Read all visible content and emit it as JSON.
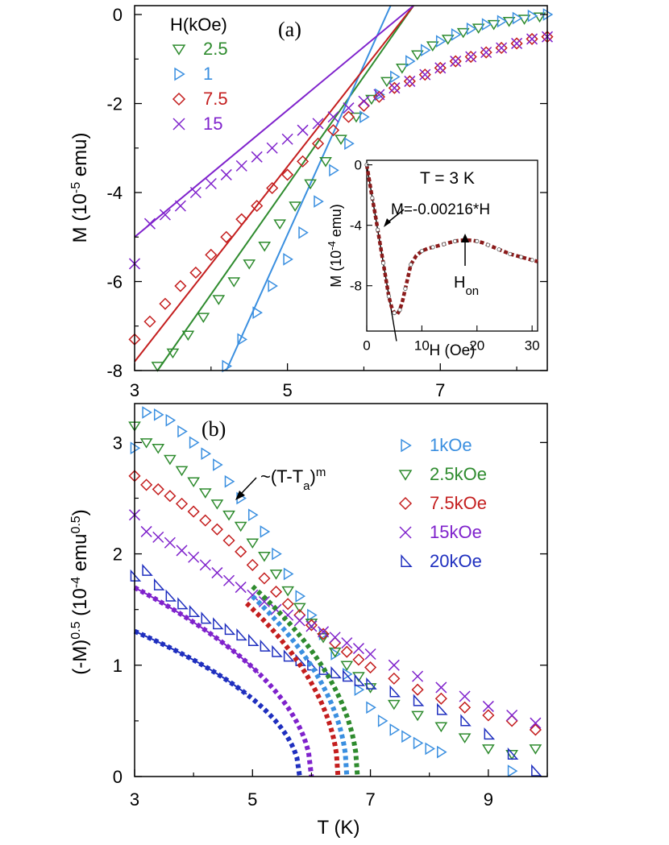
{
  "chart_data": [
    {
      "panel": "a",
      "type": "scatter",
      "panel_label": "(a)",
      "title": "",
      "xlabel": "",
      "ylabel": "M (10",
      "ylabel_exp": "-5",
      "ylabel_tail": " emu)",
      "xlim": [
        3,
        8.4
      ],
      "ylim": [
        -8,
        0.2
      ],
      "xticks": [
        "3",
        "5",
        "7"
      ],
      "yticks": [
        "0",
        "-2",
        "-4",
        "-6",
        "-8"
      ],
      "legend_title": "H(kOe)",
      "legend_position": "top-left",
      "series": [
        {
          "name": "2.5",
          "marker": "triangle-down",
          "color": "#2e8b2e",
          "x": [
            3.3,
            3.5,
            3.7,
            3.9,
            4.1,
            4.3,
            4.5,
            4.7,
            4.9,
            5.1,
            5.3,
            5.5,
            5.7,
            5.9,
            6.1,
            6.3,
            6.5,
            6.7,
            6.9,
            7.1,
            7.3,
            7.5,
            7.7,
            7.9,
            8.1,
            8.3
          ],
          "y": [
            -7.9,
            -7.6,
            -7.2,
            -6.8,
            -6.4,
            -6.0,
            -5.6,
            -5.2,
            -4.7,
            -4.3,
            -3.8,
            -3.3,
            -2.8,
            -2.3,
            -1.9,
            -1.5,
            -1.2,
            -0.9,
            -0.7,
            -0.55,
            -0.4,
            -0.3,
            -0.22,
            -0.15,
            -0.1,
            -0.05
          ]
        },
        {
          "name": "1",
          "marker": "triangle-right",
          "color": "#3a8fe0",
          "x": [
            4.2,
            4.4,
            4.6,
            4.8,
            5.0,
            5.2,
            5.4,
            5.6,
            5.8,
            6.0,
            6.2,
            6.4,
            6.6,
            6.8,
            7.0,
            7.2,
            7.4,
            7.6,
            7.8,
            8.0,
            8.2,
            8.4
          ],
          "y": [
            -7.9,
            -7.3,
            -6.7,
            -6.1,
            -5.5,
            -4.9,
            -4.2,
            -3.5,
            -2.9,
            -2.3,
            -1.8,
            -1.4,
            -1.05,
            -0.8,
            -0.6,
            -0.45,
            -0.32,
            -0.22,
            -0.15,
            -0.08,
            -0.03,
            0.0
          ]
        },
        {
          "name": "7.5",
          "marker": "diamond",
          "color": "#c41e1e",
          "x": [
            3.0,
            3.2,
            3.4,
            3.6,
            3.8,
            4.0,
            4.2,
            4.4,
            4.6,
            4.8,
            5.0,
            5.2,
            5.4,
            5.6,
            5.8,
            6.0,
            6.2,
            6.4,
            6.6,
            6.8,
            7.0,
            7.2,
            7.4,
            7.6,
            7.8,
            8.0,
            8.2,
            8.4
          ],
          "y": [
            -7.3,
            -6.9,
            -6.5,
            -6.1,
            -5.8,
            -5.4,
            -5.0,
            -4.6,
            -4.3,
            -3.9,
            -3.6,
            -3.3,
            -2.9,
            -2.6,
            -2.3,
            -2.05,
            -1.85,
            -1.65,
            -1.5,
            -1.35,
            -1.2,
            -1.05,
            -0.95,
            -0.85,
            -0.75,
            -0.65,
            -0.55,
            -0.5
          ]
        },
        {
          "name": "15",
          "marker": "x",
          "color": "#7f22cc",
          "x": [
            3.0,
            3.2,
            3.4,
            3.6,
            3.8,
            4.0,
            4.2,
            4.4,
            4.6,
            4.8,
            5.0,
            5.2,
            5.4,
            5.6,
            5.8,
            6.0,
            6.2,
            6.4,
            6.6,
            6.8,
            7.0,
            7.2,
            7.4,
            7.6,
            7.8,
            8.0,
            8.2,
            8.4
          ],
          "y": [
            -5.6,
            -4.7,
            -4.5,
            -4.3,
            -4.0,
            -3.8,
            -3.6,
            -3.4,
            -3.2,
            -3.0,
            -2.8,
            -2.6,
            -2.45,
            -2.3,
            -2.1,
            -1.95,
            -1.8,
            -1.65,
            -1.5,
            -1.35,
            -1.2,
            -1.05,
            -0.95,
            -0.85,
            -0.75,
            -0.65,
            -0.55,
            -0.5
          ]
        }
      ],
      "fit_lines": [
        {
          "series": "2.5",
          "x": [
            3.3,
            6.65
          ],
          "y": [
            -8.0,
            0.2
          ]
        },
        {
          "series": "1",
          "x": [
            4.2,
            6.35
          ],
          "y": [
            -8.0,
            0.2
          ]
        },
        {
          "series": "7.5",
          "x": [
            3.0,
            6.65
          ],
          "y": [
            -7.8,
            0.2
          ]
        },
        {
          "series": "15",
          "x": [
            3.0,
            6.65
          ],
          "y": [
            -5.0,
            0.2
          ]
        }
      ],
      "inset": {
        "xlabel": "H (Oe)",
        "ylabel": "M (10",
        "ylabel_exp": "-4",
        "ylabel_tail": " emu)",
        "title": "T = 3 K",
        "xlim": [
          0,
          31
        ],
        "ylim": [
          -11,
          0.3
        ],
        "xticks": [
          "0",
          "10",
          "20",
          "30"
        ],
        "yticks": [
          "0",
          "-4",
          "-8"
        ],
        "x": [
          0,
          0.5,
          1,
          1.5,
          2,
          2.5,
          3,
          3.5,
          4,
          4.5,
          5,
          5.5,
          6,
          6.5,
          7,
          7.5,
          8,
          9,
          10,
          11,
          12,
          13,
          14,
          15,
          16,
          17,
          18,
          19,
          20,
          21,
          22,
          23,
          24,
          25,
          26,
          27,
          28,
          29,
          30,
          31
        ],
        "y": [
          0,
          -1.1,
          -2.2,
          -3.2,
          -4.3,
          -5.4,
          -6.5,
          -7.6,
          -8.7,
          -9.4,
          -9.8,
          -9.9,
          -9.6,
          -9.0,
          -8.2,
          -7.4,
          -6.6,
          -6.0,
          -5.7,
          -5.55,
          -5.45,
          -5.35,
          -5.25,
          -5.15,
          -5.05,
          -5.0,
          -4.98,
          -5.0,
          -5.05,
          -5.15,
          -5.3,
          -5.45,
          -5.6,
          -5.75,
          -5.9,
          -6.0,
          -6.1,
          -6.2,
          -6.3,
          -6.4
        ],
        "fit_label": "M=-0.00216*H",
        "peak_label": "H",
        "peak_label_sub": "on",
        "peak_x": 17.5,
        "fit_slope": -2.16,
        "color": "#8b1a1a"
      }
    },
    {
      "panel": "b",
      "type": "scatter",
      "panel_label": "(b)",
      "title": "",
      "xlabel": "T (K)",
      "ylabel": "(-M)",
      "ylabel_exp1": "0.5",
      "ylabel_mid": " (10",
      "ylabel_exp2": "-4",
      "ylabel_mid2": " emu",
      "ylabel_exp3": "0.5",
      "ylabel_tail": ")",
      "xlim": [
        3,
        10
      ],
      "ylim": [
        0,
        3.35
      ],
      "xticks": [
        "3",
        "5",
        "7",
        "9"
      ],
      "yticks": [
        "0",
        "1",
        "2",
        "3"
      ],
      "legend_position": "top-right",
      "annotation": "~(T-T",
      "annotation_sub": "a",
      "annotation_tail": ")",
      "annotation_sup": "m",
      "series": [
        {
          "name": "1kOe",
          "marker": "triangle-right",
          "color": "#3a8fe0",
          "x": [
            3.0,
            3.2,
            3.4,
            3.6,
            3.8,
            4.0,
            4.2,
            4.4,
            4.6,
            4.8,
            5.0,
            5.2,
            5.4,
            5.6,
            5.8,
            6.0,
            6.2,
            6.4,
            6.6,
            6.8,
            7.0,
            7.2,
            7.4,
            7.6,
            7.8,
            8.0,
            8.2,
            9.4
          ],
          "y": [
            2.95,
            3.27,
            3.25,
            3.2,
            3.1,
            3.0,
            2.9,
            2.8,
            2.65,
            2.5,
            2.35,
            2.2,
            2.0,
            1.82,
            1.62,
            1.45,
            1.28,
            1.1,
            0.92,
            0.78,
            0.62,
            0.5,
            0.42,
            0.36,
            0.3,
            0.25,
            0.22,
            0.05
          ]
        },
        {
          "name": "2.5kOe",
          "marker": "triangle-down",
          "color": "#2e8b2e",
          "x": [
            3.0,
            3.2,
            3.4,
            3.6,
            3.8,
            4.0,
            4.2,
            4.4,
            4.6,
            4.8,
            5.0,
            5.2,
            5.4,
            5.6,
            5.8,
            6.0,
            6.2,
            6.4,
            6.6,
            6.8,
            7.0,
            7.4,
            7.8,
            8.2,
            8.6,
            9.0,
            9.4,
            9.8
          ],
          "y": [
            3.15,
            3.0,
            2.95,
            2.85,
            2.75,
            2.65,
            2.55,
            2.45,
            2.35,
            2.25,
            2.1,
            1.98,
            1.82,
            1.67,
            1.52,
            1.38,
            1.25,
            1.12,
            1.0,
            0.9,
            0.8,
            0.65,
            0.55,
            0.45,
            0.35,
            0.25,
            0.2,
            0.25
          ]
        },
        {
          "name": "7.5kOe",
          "marker": "diamond",
          "color": "#c41e1e",
          "x": [
            3.0,
            3.2,
            3.4,
            3.6,
            3.8,
            4.0,
            4.2,
            4.4,
            4.6,
            4.8,
            5.0,
            5.2,
            5.4,
            5.6,
            5.8,
            6.0,
            6.2,
            6.4,
            6.6,
            6.8,
            7.0,
            7.4,
            7.8,
            8.2,
            8.6,
            9.0,
            9.4,
            9.8
          ],
          "y": [
            2.7,
            2.62,
            2.58,
            2.52,
            2.45,
            2.38,
            2.3,
            2.22,
            2.12,
            2.02,
            1.9,
            1.78,
            1.66,
            1.55,
            1.45,
            1.36,
            1.28,
            1.2,
            1.12,
            1.05,
            0.98,
            0.88,
            0.78,
            0.7,
            0.62,
            0.55,
            0.5,
            0.42
          ]
        },
        {
          "name": "15kOe",
          "marker": "x",
          "color": "#7f22cc",
          "x": [
            3.0,
            3.2,
            3.4,
            3.6,
            3.8,
            4.0,
            4.2,
            4.4,
            4.6,
            4.8,
            5.0,
            5.2,
            5.4,
            5.6,
            5.8,
            6.0,
            6.2,
            6.4,
            6.6,
            6.8,
            7.0,
            7.4,
            7.8,
            8.2,
            8.6,
            9.0,
            9.4,
            9.8
          ],
          "y": [
            2.35,
            2.2,
            2.15,
            2.1,
            2.03,
            1.97,
            1.9,
            1.83,
            1.76,
            1.7,
            1.63,
            1.57,
            1.5,
            1.45,
            1.4,
            1.35,
            1.3,
            1.25,
            1.2,
            1.15,
            1.1,
            1.0,
            0.9,
            0.8,
            0.72,
            0.63,
            0.55,
            0.48
          ]
        },
        {
          "name": "20kOe",
          "marker": "triangle-right-half",
          "color": "#1f2fbf",
          "x": [
            3.0,
            3.2,
            3.4,
            3.6,
            3.8,
            4.0,
            4.2,
            4.4,
            4.6,
            4.8,
            5.0,
            5.2,
            5.4,
            5.6,
            5.8,
            6.0,
            6.2,
            6.4,
            6.6,
            6.8,
            7.0,
            7.4,
            7.8,
            8.2,
            8.6,
            9.0,
            9.4,
            9.8
          ],
          "y": [
            1.8,
            1.85,
            1.72,
            1.62,
            1.55,
            1.48,
            1.42,
            1.37,
            1.32,
            1.27,
            1.22,
            1.17,
            1.12,
            1.08,
            1.04,
            1.0,
            0.96,
            0.93,
            0.9,
            0.86,
            0.83,
            0.76,
            0.68,
            0.6,
            0.5,
            0.38,
            0.2,
            0.05
          ]
        }
      ],
      "fit_curves": [
        {
          "series": "2.5kOe",
          "color": "#2e8b2e",
          "Ta": 6.78,
          "A": 1.28,
          "m": 0.5,
          "x_start": 5.0
        },
        {
          "series": "1kOe",
          "color": "#3a8fe0",
          "Ta": 6.6,
          "A": 1.28,
          "m": 0.5,
          "x_start": 5.0
        },
        {
          "series": "7.5kOe",
          "color": "#c41e1e",
          "Ta": 6.45,
          "A": 1.25,
          "m": 0.5,
          "x_start": 4.9
        },
        {
          "series": "15kOe",
          "color": "#7f22cc",
          "Ta": 6.0,
          "A": 0.98,
          "m": 0.5,
          "x_start": 3.0
        },
        {
          "series": "20kOe",
          "color": "#1f2fbf",
          "Ta": 5.8,
          "A": 0.78,
          "m": 0.5,
          "x_start": 3.0
        }
      ]
    }
  ]
}
